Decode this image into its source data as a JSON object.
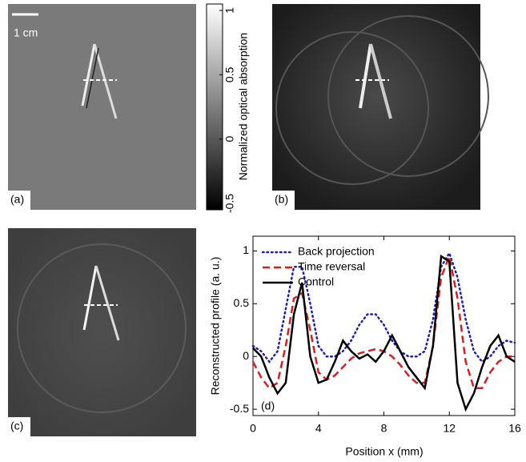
{
  "scale_bar": "1 cm",
  "panels": {
    "a": "(a)",
    "b": "(b)",
    "c": "(c)",
    "d": "(d)"
  },
  "colorbar": {
    "label": "Normalized optical absorption",
    "lim": [
      -0.55,
      1.05
    ],
    "ticks": [
      -0.5,
      0,
      0.5,
      1
    ]
  },
  "chart_data": {
    "type": "line",
    "xlabel": "Position x (mm)",
    "ylabel": "Reconstructed profile (a. u.)",
    "x": [
      0,
      0.5,
      1,
      1.5,
      2,
      2.5,
      3,
      3.5,
      4,
      4.5,
      5,
      5.5,
      6,
      6.5,
      7,
      7.5,
      8,
      8.5,
      9,
      9.5,
      10,
      10.5,
      11,
      11.5,
      12,
      12.5,
      13,
      13.5,
      14,
      14.5,
      15,
      15.5,
      16
    ],
    "series": [
      {
        "name": "Back projection",
        "color": "#1f1fa8",
        "style": "dotted",
        "values": [
          0.1,
          0.05,
          -0.05,
          0.05,
          0.45,
          0.85,
          0.85,
          0.5,
          0.1,
          0.0,
          0.0,
          0.05,
          0.15,
          0.3,
          0.4,
          0.4,
          0.3,
          0.15,
          0.05,
          0.0,
          0.0,
          0.05,
          0.35,
          0.85,
          0.98,
          0.75,
          0.35,
          0.05,
          -0.05,
          0.0,
          0.1,
          0.15,
          0.13
        ]
      },
      {
        "name": "Time reversal",
        "color": "#d42020",
        "style": "dashed",
        "values": [
          -0.05,
          -0.2,
          -0.3,
          -0.25,
          0.1,
          0.55,
          0.6,
          0.25,
          -0.15,
          -0.22,
          -0.18,
          -0.1,
          -0.02,
          0.03,
          0.05,
          0.07,
          0.05,
          0.0,
          -0.08,
          -0.18,
          -0.25,
          -0.25,
          0.1,
          0.75,
          0.95,
          0.55,
          -0.05,
          -0.3,
          -0.3,
          -0.15,
          -0.05,
          0.0,
          0.0
        ]
      },
      {
        "name": "Control",
        "color": "#000000",
        "style": "solid",
        "values": [
          0.08,
          0.0,
          -0.2,
          -0.35,
          -0.25,
          0.4,
          0.7,
          0.0,
          -0.25,
          -0.22,
          -0.05,
          0.15,
          0.05,
          -0.02,
          0.02,
          -0.05,
          0.05,
          0.2,
          0.05,
          -0.1,
          -0.2,
          -0.3,
          0.1,
          0.95,
          0.9,
          -0.25,
          -0.5,
          -0.35,
          -0.1,
          0.1,
          0.2,
          0.0,
          -0.05
        ]
      }
    ],
    "xlim": [
      0,
      16
    ],
    "xticks": [
      0,
      4,
      8,
      12,
      16
    ],
    "ylim": [
      -0.56,
      1.14
    ],
    "yticks": [
      -0.5,
      0,
      0.5,
      1
    ],
    "legend": "upper left"
  }
}
